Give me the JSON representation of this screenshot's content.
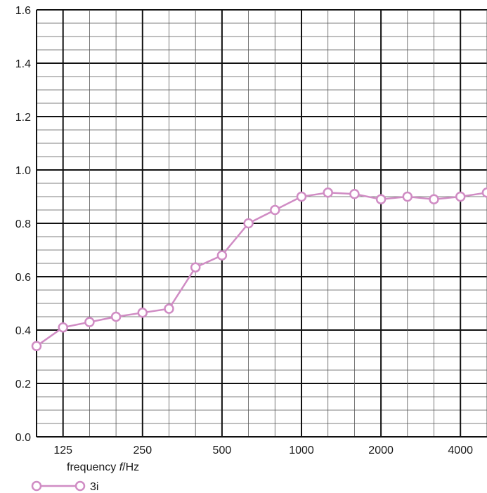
{
  "chart_data": {
    "type": "line",
    "xlabel_prefix": "frequency ",
    "xlabel_var": "f",
    "xlabel_unit": "/Hz",
    "ylabel": "",
    "ylim": [
      0,
      1.6
    ],
    "y_major_ticks": [
      "0.0",
      "0.2",
      "0.4",
      "0.6",
      "0.8",
      "1.0",
      "1.2",
      "1.4",
      "1.6"
    ],
    "x_scale": "log (1/3-octave bands)",
    "x_tick_labels": [
      "125",
      "250",
      "500",
      "1000",
      "2000",
      "4000"
    ],
    "x": [
      100,
      125,
      160,
      200,
      250,
      315,
      400,
      500,
      630,
      800,
      1000,
      1250,
      1600,
      2000,
      2500,
      3150,
      4000,
      5000
    ],
    "series": [
      {
        "name": "3i",
        "color": "#d08cc4",
        "marker": "open-circle",
        "values": [
          0.34,
          0.41,
          0.43,
          0.45,
          0.465,
          0.48,
          0.635,
          0.68,
          0.8,
          0.85,
          0.9,
          0.915,
          0.91,
          0.89,
          0.9,
          0.89,
          0.9,
          0.915
        ]
      }
    ],
    "grid": "on (major + minor)",
    "legend": "bottom-left"
  }
}
